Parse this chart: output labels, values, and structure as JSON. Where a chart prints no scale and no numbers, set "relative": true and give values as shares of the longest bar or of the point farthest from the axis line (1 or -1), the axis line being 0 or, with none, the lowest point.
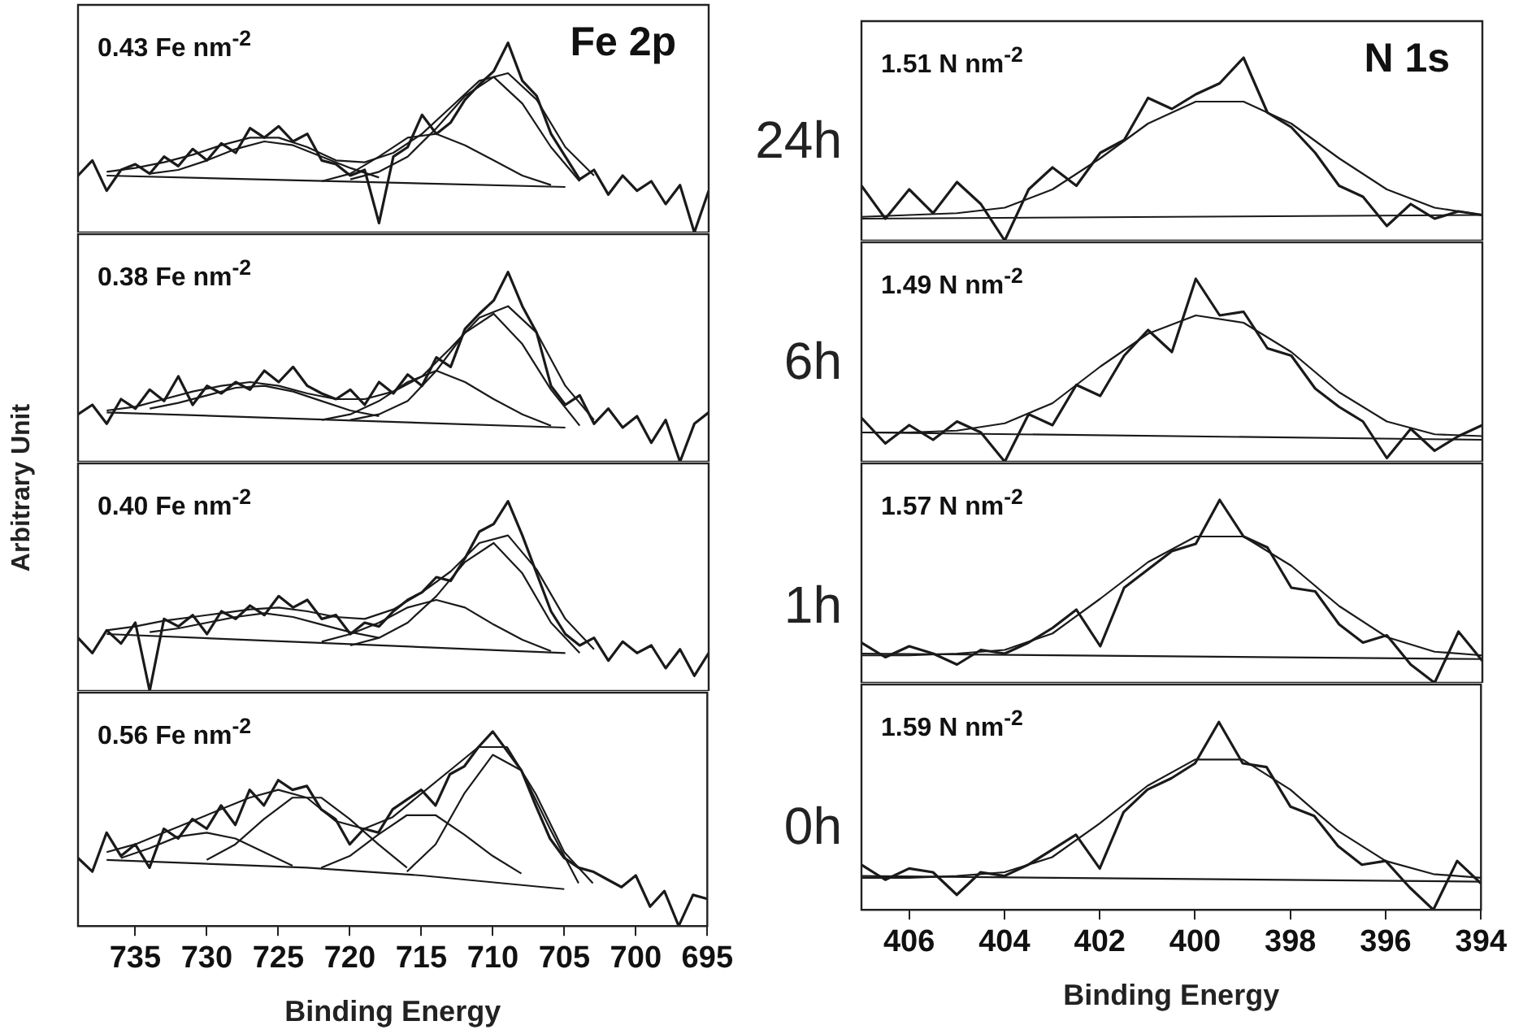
{
  "chart_data": [
    {
      "type": "line",
      "relative": true,
      "annotations": [
        "0.43 Fe nm$^{-2}$",
        "Fe 2p"
      ],
      "tick_labels": false,
      "xlim": [
        739,
        695
      ],
      "series": [
        {
          "color": "#1a1a1a",
          "x": [
            739,
            738,
            737,
            736,
            735,
            734,
            733,
            732,
            731,
            730,
            729,
            728,
            727,
            726,
            725,
            724,
            723,
            722,
            721,
            720,
            719,
            718,
            717,
            716,
            715,
            714,
            713,
            712,
            711,
            710,
            709,
            708,
            707,
            706,
            705,
            704,
            703,
            702,
            701,
            700,
            699,
            698,
            697,
            696,
            695
          ],
          "values": [
            0.3,
            0.38,
            0.22,
            0.33,
            0.36,
            0.31,
            0.4,
            0.35,
            0.44,
            0.38,
            0.47,
            0.42,
            0.55,
            0.5,
            0.56,
            0.48,
            0.52,
            0.38,
            0.36,
            0.3,
            0.33,
            0.05,
            0.4,
            0.45,
            0.62,
            0.52,
            0.58,
            0.7,
            0.78,
            0.85,
            1.0,
            0.8,
            0.72,
            0.52,
            0.4,
            0.28,
            0.33,
            0.2,
            0.3,
            0.22,
            0.27,
            0.15,
            0.25,
            0.0,
            0.22
          ]
        },
        {
          "color": "#1a1a1a",
          "x": [
            737,
            735,
            733,
            731,
            729,
            727,
            725,
            723,
            721,
            719,
            717,
            715,
            713,
            711,
            709,
            707,
            705,
            703
          ],
          "values": [
            0.32,
            0.34,
            0.37,
            0.41,
            0.46,
            0.5,
            0.5,
            0.45,
            0.38,
            0.37,
            0.42,
            0.52,
            0.66,
            0.8,
            0.84,
            0.7,
            0.45,
            0.3
          ]
        },
        {
          "color": "#1a1a1a",
          "x": [
            737,
            705
          ],
          "values": [
            0.3,
            0.24
          ]
        },
        {
          "color": "#1a1a1a",
          "x": [
            734,
            732,
            730,
            728,
            726,
            724,
            722,
            720,
            718
          ],
          "values": [
            0.31,
            0.33,
            0.38,
            0.44,
            0.48,
            0.46,
            0.4,
            0.34,
            0.29
          ]
        },
        {
          "color": "#1a1a1a",
          "x": [
            720,
            718,
            716,
            714,
            712,
            710,
            708,
            706,
            704
          ],
          "values": [
            0.28,
            0.32,
            0.4,
            0.55,
            0.72,
            0.82,
            0.68,
            0.45,
            0.27
          ]
        },
        {
          "color": "#1a1a1a",
          "x": [
            722,
            720,
            718,
            716,
            714,
            712,
            710,
            708,
            706
          ],
          "values": [
            0.27,
            0.31,
            0.4,
            0.5,
            0.52,
            0.46,
            0.38,
            0.3,
            0.25
          ]
        }
      ]
    },
    {
      "type": "line",
      "relative": true,
      "title": "24h",
      "annotations": [
        "1.51 N nm$^{-2}$",
        "N 1s"
      ],
      "tick_labels": false,
      "xlim": [
        407,
        394
      ],
      "series": [
        {
          "color": "#1a1a1a",
          "x": [
            407,
            406.5,
            406,
            405.5,
            405,
            404.5,
            404,
            403.5,
            403,
            402.5,
            402,
            401.5,
            401,
            400.5,
            400,
            399.5,
            399,
            398.5,
            398,
            397.5,
            397,
            396.5,
            396,
            395.5,
            395,
            394.5,
            394
          ],
          "values": [
            0.3,
            0.12,
            0.28,
            0.15,
            0.32,
            0.2,
            0.0,
            0.28,
            0.4,
            0.3,
            0.48,
            0.55,
            0.78,
            0.72,
            0.8,
            0.86,
            1.0,
            0.7,
            0.62,
            0.48,
            0.3,
            0.24,
            0.08,
            0.2,
            0.12,
            0.16,
            0.14
          ]
        },
        {
          "color": "#1a1a1a",
          "x": [
            407,
            406,
            405,
            404,
            403,
            402,
            401,
            400,
            399,
            398,
            397,
            396,
            395,
            394
          ],
          "values": [
            0.13,
            0.14,
            0.15,
            0.18,
            0.28,
            0.45,
            0.64,
            0.76,
            0.76,
            0.64,
            0.45,
            0.28,
            0.18,
            0.14
          ]
        },
        {
          "color": "#1a1a1a",
          "x": [
            407,
            394
          ],
          "values": [
            0.12,
            0.14
          ]
        }
      ]
    },
    {
      "type": "line",
      "relative": true,
      "annotations": [
        "0.38 Fe nm$^{-2}$"
      ],
      "tick_labels": false,
      "xlim": [
        739,
        695
      ],
      "series": [
        {
          "color": "#1a1a1a",
          "x": [
            739,
            738,
            737,
            736,
            735,
            734,
            733,
            732,
            731,
            730,
            729,
            728,
            727,
            726,
            725,
            724,
            723,
            722,
            721,
            720,
            719,
            718,
            717,
            716,
            715,
            714,
            713,
            712,
            711,
            710,
            709,
            708,
            707,
            706,
            705,
            704,
            703,
            702,
            701,
            700,
            699,
            698,
            697,
            696,
            695
          ],
          "values": [
            0.25,
            0.3,
            0.2,
            0.33,
            0.28,
            0.38,
            0.32,
            0.45,
            0.3,
            0.4,
            0.36,
            0.42,
            0.38,
            0.48,
            0.42,
            0.5,
            0.4,
            0.36,
            0.33,
            0.38,
            0.3,
            0.42,
            0.36,
            0.46,
            0.4,
            0.55,
            0.5,
            0.7,
            0.78,
            0.85,
            1.0,
            0.82,
            0.68,
            0.4,
            0.3,
            0.35,
            0.2,
            0.28,
            0.18,
            0.24,
            0.1,
            0.22,
            0.0,
            0.2,
            0.26
          ]
        },
        {
          "color": "#1a1a1a",
          "x": [
            737,
            735,
            733,
            731,
            729,
            727,
            725,
            723,
            721,
            719,
            717,
            715,
            713,
            711,
            709,
            707,
            705,
            703
          ],
          "values": [
            0.27,
            0.29,
            0.33,
            0.37,
            0.4,
            0.42,
            0.4,
            0.36,
            0.33,
            0.33,
            0.37,
            0.45,
            0.6,
            0.76,
            0.82,
            0.68,
            0.4,
            0.22
          ]
        },
        {
          "color": "#1a1a1a",
          "x": [
            737,
            705
          ],
          "values": [
            0.26,
            0.18
          ]
        },
        {
          "color": "#1a1a1a",
          "x": [
            734,
            732,
            730,
            728,
            726,
            724,
            722,
            720,
            718
          ],
          "values": [
            0.28,
            0.31,
            0.35,
            0.39,
            0.4,
            0.37,
            0.32,
            0.27,
            0.24
          ]
        },
        {
          "color": "#1a1a1a",
          "x": [
            720,
            718,
            716,
            714,
            712,
            710,
            708,
            706,
            704
          ],
          "values": [
            0.22,
            0.25,
            0.32,
            0.48,
            0.68,
            0.78,
            0.62,
            0.38,
            0.19
          ]
        },
        {
          "color": "#1a1a1a",
          "x": [
            722,
            720,
            718,
            716,
            714,
            712,
            710,
            708,
            706
          ],
          "values": [
            0.22,
            0.25,
            0.32,
            0.42,
            0.48,
            0.42,
            0.33,
            0.25,
            0.19
          ]
        }
      ]
    },
    {
      "type": "line",
      "relative": true,
      "title": "6h",
      "annotations": [
        "1.49 N nm$^{-2}$"
      ],
      "tick_labels": false,
      "xlim": [
        407,
        394
      ],
      "series": [
        {
          "color": "#1a1a1a",
          "x": [
            407,
            406.5,
            406,
            405.5,
            405,
            404.5,
            404,
            403.5,
            403,
            402.5,
            402,
            401.5,
            401,
            400.5,
            400,
            399.5,
            399,
            398.5,
            398,
            397.5,
            397,
            396.5,
            396,
            395.5,
            395,
            394.5,
            394
          ],
          "values": [
            0.24,
            0.1,
            0.2,
            0.12,
            0.22,
            0.16,
            0.0,
            0.26,
            0.2,
            0.42,
            0.36,
            0.58,
            0.72,
            0.6,
            1.0,
            0.8,
            0.82,
            0.62,
            0.58,
            0.4,
            0.3,
            0.22,
            0.02,
            0.18,
            0.06,
            0.14,
            0.2
          ]
        },
        {
          "color": "#1a1a1a",
          "x": [
            407,
            406,
            405,
            404,
            403,
            402,
            401,
            400,
            399,
            398,
            397,
            396,
            395,
            394
          ],
          "values": [
            0.16,
            0.16,
            0.17,
            0.21,
            0.32,
            0.52,
            0.7,
            0.8,
            0.76,
            0.6,
            0.38,
            0.22,
            0.15,
            0.14
          ]
        },
        {
          "color": "#1a1a1a",
          "x": [
            407,
            394
          ],
          "values": [
            0.16,
            0.12
          ]
        }
      ]
    },
    {
      "type": "line",
      "relative": true,
      "ylabel": "Arbitrary Unit",
      "annotations": [
        "0.40 Fe nm$^{-2}$"
      ],
      "tick_labels": false,
      "xlim": [
        739,
        695
      ],
      "series": [
        {
          "color": "#1a1a1a",
          "x": [
            739,
            738,
            737,
            736,
            735,
            734,
            733,
            732,
            731,
            730,
            729,
            728,
            727,
            726,
            725,
            724,
            723,
            722,
            721,
            720,
            719,
            718,
            717,
            716,
            715,
            714,
            713,
            712,
            711,
            710,
            709,
            708,
            707,
            706,
            705,
            704,
            703,
            702,
            701,
            700,
            699,
            698,
            697,
            696,
            695
          ],
          "values": [
            0.28,
            0.2,
            0.32,
            0.25,
            0.36,
            0.0,
            0.38,
            0.34,
            0.4,
            0.3,
            0.42,
            0.38,
            0.45,
            0.4,
            0.5,
            0.44,
            0.48,
            0.38,
            0.4,
            0.3,
            0.36,
            0.34,
            0.42,
            0.48,
            0.52,
            0.6,
            0.58,
            0.7,
            0.84,
            0.88,
            1.0,
            0.82,
            0.62,
            0.42,
            0.3,
            0.24,
            0.28,
            0.16,
            0.26,
            0.2,
            0.24,
            0.12,
            0.22,
            0.08,
            0.2
          ]
        },
        {
          "color": "#1a1a1a",
          "x": [
            737,
            735,
            733,
            731,
            729,
            727,
            725,
            723,
            721,
            719,
            717,
            715,
            713,
            711,
            709,
            707,
            705,
            703
          ],
          "values": [
            0.32,
            0.34,
            0.37,
            0.39,
            0.41,
            0.43,
            0.44,
            0.42,
            0.39,
            0.38,
            0.43,
            0.52,
            0.63,
            0.78,
            0.82,
            0.64,
            0.38,
            0.22
          ]
        },
        {
          "color": "#1a1a1a",
          "x": [
            737,
            705
          ],
          "values": [
            0.3,
            0.2
          ]
        },
        {
          "color": "#1a1a1a",
          "x": [
            734,
            732,
            730,
            728,
            726,
            724,
            722,
            720,
            718
          ],
          "values": [
            0.31,
            0.33,
            0.36,
            0.39,
            0.41,
            0.39,
            0.35,
            0.31,
            0.28
          ]
        },
        {
          "color": "#1a1a1a",
          "x": [
            720,
            718,
            716,
            714,
            712,
            710,
            708,
            706,
            704
          ],
          "values": [
            0.24,
            0.28,
            0.36,
            0.5,
            0.68,
            0.78,
            0.62,
            0.36,
            0.2
          ]
        },
        {
          "color": "#1a1a1a",
          "x": [
            722,
            720,
            718,
            716,
            714,
            712,
            710,
            708,
            706
          ],
          "values": [
            0.26,
            0.3,
            0.36,
            0.44,
            0.48,
            0.44,
            0.35,
            0.27,
            0.21
          ]
        }
      ]
    },
    {
      "type": "line",
      "relative": true,
      "title": "1h",
      "annotations": [
        "1.57 N nm$^{-2}$"
      ],
      "tick_labels": false,
      "xlim": [
        407,
        394
      ],
      "series": [
        {
          "color": "#1a1a1a",
          "x": [
            407,
            406.5,
            406,
            405.5,
            405,
            404.5,
            404,
            403.5,
            403,
            402.5,
            402,
            401.5,
            401,
            400.5,
            400,
            399.5,
            399,
            398.5,
            398,
            397.5,
            397,
            396.5,
            396,
            395.5,
            395,
            394.5,
            394
          ],
          "values": [
            0.22,
            0.14,
            0.2,
            0.16,
            0.1,
            0.18,
            0.16,
            0.22,
            0.3,
            0.4,
            0.2,
            0.52,
            0.62,
            0.72,
            0.76,
            1.0,
            0.8,
            0.74,
            0.52,
            0.5,
            0.32,
            0.22,
            0.26,
            0.1,
            0.0,
            0.28,
            0.12
          ]
        },
        {
          "color": "#1a1a1a",
          "x": [
            407,
            406,
            405,
            404,
            403,
            402,
            401,
            400,
            399,
            398,
            397,
            396,
            395,
            394
          ],
          "values": [
            0.15,
            0.15,
            0.16,
            0.18,
            0.27,
            0.46,
            0.66,
            0.8,
            0.8,
            0.64,
            0.42,
            0.25,
            0.17,
            0.15
          ]
        },
        {
          "color": "#1a1a1a",
          "x": [
            407,
            394
          ],
          "values": [
            0.16,
            0.13
          ]
        }
      ]
    },
    {
      "type": "line",
      "relative": true,
      "annotations": [
        "0.56 Fe nm$^{-2}$"
      ],
      "tick_labels": "x",
      "xlabel": "Binding Energy",
      "xlim": [
        739,
        695
      ],
      "xticks": [
        735,
        730,
        725,
        720,
        715,
        710,
        705,
        700,
        695
      ],
      "series": [
        {
          "color": "#1a1a1a",
          "x": [
            739,
            738,
            737,
            736,
            735,
            734,
            733,
            732,
            731,
            730,
            729,
            728,
            727,
            726,
            725,
            724,
            723,
            722,
            721,
            720,
            719,
            718,
            717,
            716,
            715,
            714,
            713,
            712,
            711,
            710,
            709,
            708,
            707,
            706,
            705,
            704,
            703,
            702,
            701,
            700,
            699,
            698,
            697,
            696,
            695
          ],
          "values": [
            0.35,
            0.28,
            0.48,
            0.36,
            0.42,
            0.3,
            0.5,
            0.45,
            0.55,
            0.5,
            0.62,
            0.52,
            0.7,
            0.62,
            0.75,
            0.7,
            0.72,
            0.6,
            0.55,
            0.42,
            0.5,
            0.48,
            0.6,
            0.65,
            0.7,
            0.62,
            0.78,
            0.82,
            0.92,
            1.0,
            0.9,
            0.8,
            0.62,
            0.45,
            0.35,
            0.3,
            0.28,
            0.24,
            0.2,
            0.26,
            0.1,
            0.18,
            0.0,
            0.16,
            0.14
          ]
        },
        {
          "color": "#1a1a1a",
          "x": [
            737,
            735,
            733,
            731,
            729,
            727,
            725,
            723,
            721,
            719,
            717,
            715,
            713,
            711,
            709,
            707,
            705,
            703
          ],
          "values": [
            0.38,
            0.42,
            0.48,
            0.54,
            0.6,
            0.66,
            0.7,
            0.66,
            0.54,
            0.5,
            0.56,
            0.68,
            0.8,
            0.92,
            0.92,
            0.68,
            0.38,
            0.22
          ]
        },
        {
          "color": "#1a1a1a",
          "x": [
            737,
            723,
            715,
            705
          ],
          "values": [
            0.34,
            0.3,
            0.26,
            0.19
          ]
        },
        {
          "color": "#1a1a1a",
          "x": [
            736,
            734,
            732,
            730,
            728,
            726,
            724
          ],
          "values": [
            0.35,
            0.4,
            0.46,
            0.48,
            0.45,
            0.38,
            0.31
          ]
        },
        {
          "color": "#1a1a1a",
          "x": [
            730,
            728,
            726,
            724,
            722,
            720,
            718,
            716
          ],
          "values": [
            0.34,
            0.42,
            0.55,
            0.66,
            0.66,
            0.55,
            0.42,
            0.3
          ]
        },
        {
          "color": "#1a1a1a",
          "x": [
            722,
            720,
            718,
            716,
            714,
            712,
            710,
            708
          ],
          "values": [
            0.3,
            0.36,
            0.47,
            0.57,
            0.57,
            0.47,
            0.36,
            0.27
          ]
        },
        {
          "color": "#1a1a1a",
          "x": [
            716,
            714,
            712,
            710,
            708,
            706,
            704
          ],
          "values": [
            0.28,
            0.42,
            0.68,
            0.88,
            0.8,
            0.5,
            0.22
          ]
        }
      ]
    },
    {
      "type": "line",
      "relative": true,
      "title": "0h",
      "annotations": [
        "1.59 N nm$^{-2}$"
      ],
      "tick_labels": "x",
      "xlabel": "Binding Energy",
      "xlim": [
        407,
        394
      ],
      "xticks": [
        406,
        404,
        402,
        400,
        398,
        396,
        394
      ],
      "series": [
        {
          "color": "#1a1a1a",
          "x": [
            407,
            406.5,
            406,
            405.5,
            405,
            404.5,
            404,
            403.5,
            403,
            402.5,
            402,
            401.5,
            401,
            400.5,
            400,
            399.5,
            399,
            398.5,
            398,
            397.5,
            397,
            396.5,
            396,
            395.5,
            395,
            394.5,
            394
          ],
          "values": [
            0.24,
            0.16,
            0.22,
            0.2,
            0.08,
            0.2,
            0.18,
            0.24,
            0.32,
            0.4,
            0.22,
            0.52,
            0.64,
            0.7,
            0.78,
            1.0,
            0.78,
            0.76,
            0.55,
            0.5,
            0.34,
            0.24,
            0.26,
            0.12,
            0.0,
            0.26,
            0.14
          ]
        },
        {
          "color": "#1a1a1a",
          "x": [
            407,
            406,
            405,
            404,
            403,
            402,
            401,
            400,
            399,
            398,
            397,
            396,
            395,
            394
          ],
          "values": [
            0.17,
            0.17,
            0.18,
            0.2,
            0.28,
            0.46,
            0.66,
            0.8,
            0.8,
            0.64,
            0.42,
            0.26,
            0.19,
            0.17
          ]
        },
        {
          "color": "#1a1a1a",
          "x": [
            407,
            394
          ],
          "values": [
            0.18,
            0.15
          ]
        }
      ]
    }
  ]
}
